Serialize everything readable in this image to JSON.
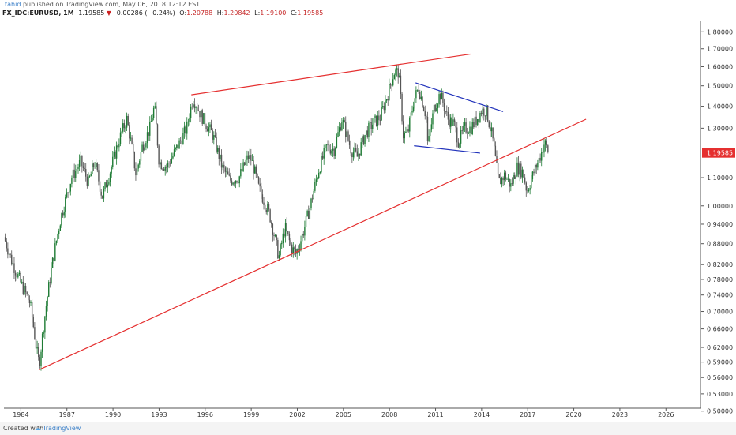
{
  "header": {
    "username": "tahid",
    "published_text": "published on TradingView.com, May 06, 2018 12:12 EST",
    "symbol": "FX_IDC:EURUSD, 1M",
    "last_price": "1.19585",
    "change_arrow": "▼",
    "change": "−0.00286 (−0.24%)",
    "open_label": "O:",
    "open": "1.20788",
    "high_label": "H:",
    "high": "1.20842",
    "low_label": "L:",
    "low": "1.19100",
    "close_label": "C:",
    "close": "1.19585"
  },
  "footer": {
    "created_with": "Created with",
    "brand": "TradingView"
  },
  "colors": {
    "up": "#1e7b34",
    "down": "#555555",
    "trend": "#e53030",
    "triangle": "#2233bb",
    "price_label": "#e53030"
  },
  "chart_data": {
    "type": "candlestick",
    "y_scale": "log",
    "y_ticks": [
      "1.80000",
      "1.70000",
      "1.60000",
      "1.50000",
      "1.40000",
      "1.30000",
      "1.10000",
      "1.00000",
      "0.94000",
      "0.88000",
      "0.82000",
      "0.78000",
      "0.74000",
      "0.70000",
      "0.66000",
      "0.62000",
      "0.59000",
      "0.56000",
      "0.53000",
      "0.50000"
    ],
    "x_ticks": [
      "1984",
      "1987",
      "1990",
      "1993",
      "1996",
      "1999",
      "2002",
      "2005",
      "2008",
      "2011",
      "2014",
      "2017",
      "2020",
      "2023",
      "2026"
    ],
    "x_range": [
      1982.9,
      2028.3
    ],
    "ylim": [
      0.505,
      1.87
    ],
    "last_price_label": "1.19585",
    "anchors": [
      [
        1982.9,
        0.9
      ],
      [
        1983.4,
        0.83
      ],
      [
        1984.0,
        0.77
      ],
      [
        1984.6,
        0.72
      ],
      [
        1985.0,
        0.62
      ],
      [
        1985.2,
        0.585
      ],
      [
        1985.6,
        0.7
      ],
      [
        1986.0,
        0.81
      ],
      [
        1986.6,
        0.96
      ],
      [
        1987.3,
        1.1
      ],
      [
        1987.9,
        1.16
      ],
      [
        1988.4,
        1.08
      ],
      [
        1988.8,
        1.16
      ],
      [
        1989.3,
        1.03
      ],
      [
        1989.8,
        1.12
      ],
      [
        1990.4,
        1.25
      ],
      [
        1990.9,
        1.34
      ],
      [
        1991.5,
        1.11
      ],
      [
        1991.9,
        1.22
      ],
      [
        1992.4,
        1.3
      ],
      [
        1992.7,
        1.4
      ],
      [
        1993.0,
        1.16
      ],
      [
        1993.5,
        1.14
      ],
      [
        1994.2,
        1.22
      ],
      [
        1994.8,
        1.3
      ],
      [
        1995.2,
        1.44
      ],
      [
        1995.8,
        1.35
      ],
      [
        1996.5,
        1.27
      ],
      [
        1997.1,
        1.14
      ],
      [
        1997.6,
        1.09
      ],
      [
        1998.2,
        1.1
      ],
      [
        1998.8,
        1.18
      ],
      [
        1999.0,
        1.17
      ],
      [
        1999.5,
        1.06
      ],
      [
        2000.2,
        0.97
      ],
      [
        2000.8,
        0.84
      ],
      [
        2001.2,
        0.93
      ],
      [
        2001.6,
        0.87
      ],
      [
        2001.9,
        0.85
      ],
      [
        2002.3,
        0.9
      ],
      [
        2002.8,
        0.99
      ],
      [
        2003.4,
        1.13
      ],
      [
        2003.9,
        1.22
      ],
      [
        2004.4,
        1.21
      ],
      [
        2004.9,
        1.34
      ],
      [
        2005.5,
        1.21
      ],
      [
        2005.9,
        1.18
      ],
      [
        2006.4,
        1.27
      ],
      [
        2006.9,
        1.32
      ],
      [
        2007.4,
        1.35
      ],
      [
        2007.9,
        1.46
      ],
      [
        2008.3,
        1.57
      ],
      [
        2008.6,
        1.57
      ],
      [
        2008.9,
        1.27
      ],
      [
        2009.2,
        1.28
      ],
      [
        2009.6,
        1.43
      ],
      [
        2009.9,
        1.49
      ],
      [
        2010.4,
        1.35
      ],
      [
        2010.5,
        1.22
      ],
      [
        2010.9,
        1.39
      ],
      [
        2011.3,
        1.46
      ],
      [
        2011.8,
        1.34
      ],
      [
        2012.2,
        1.32
      ],
      [
        2012.5,
        1.24
      ],
      [
        2012.9,
        1.3
      ],
      [
        2013.3,
        1.3
      ],
      [
        2013.6,
        1.33
      ],
      [
        2014.0,
        1.38
      ],
      [
        2014.3,
        1.38
      ],
      [
        2014.7,
        1.26
      ],
      [
        2015.1,
        1.08
      ],
      [
        2015.5,
        1.11
      ],
      [
        2015.9,
        1.07
      ],
      [
        2016.3,
        1.14
      ],
      [
        2016.7,
        1.12
      ],
      [
        2016.95,
        1.05
      ],
      [
        2017.4,
        1.12
      ],
      [
        2017.8,
        1.18
      ],
      [
        2018.1,
        1.24
      ],
      [
        2018.35,
        1.2
      ]
    ],
    "annotations": [
      {
        "kind": "line",
        "color": "trend",
        "from": [
          1985.2,
          0.575
        ],
        "to": [
          2020.8,
          1.34
        ]
      },
      {
        "kind": "line",
        "color": "trend",
        "from": [
          1995.1,
          1.455
        ],
        "to": [
          2013.3,
          1.67
        ]
      },
      {
        "kind": "line",
        "color": "triangle",
        "from": [
          2009.7,
          1.515
        ],
        "to": [
          2015.4,
          1.375
        ]
      },
      {
        "kind": "line",
        "color": "triangle",
        "from": [
          2009.6,
          1.225
        ],
        "to": [
          2013.9,
          1.195
        ]
      }
    ]
  }
}
